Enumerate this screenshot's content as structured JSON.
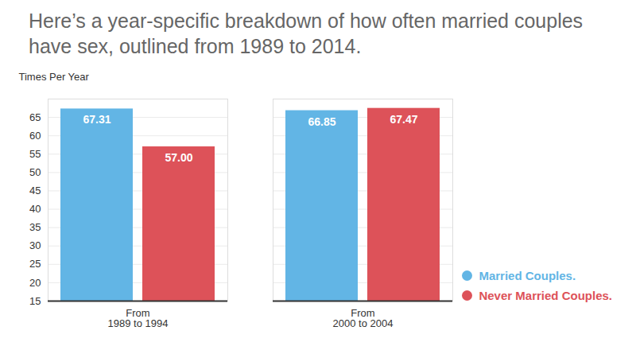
{
  "chart_data": {
    "type": "bar",
    "title": "Here’s a year-specific breakdown of how often married couples have sex, outlined from 1989 to 2014.",
    "y_label": "Times Per Year",
    "categories": [
      "From 1989 to 1994",
      "From 2000 to 2004"
    ],
    "series": [
      {
        "name": "Married Couples.",
        "color": "#62b5e5",
        "values": [
          67.31,
          66.85
        ],
        "value_labels": [
          "67.31",
          "66.85"
        ]
      },
      {
        "name": "Never Married Couples.",
        "color": "#dd5259",
        "values": [
          57.0,
          67.47
        ],
        "value_labels": [
          "57.00",
          "67.47"
        ]
      }
    ],
    "ylim": [
      15,
      70
    ],
    "yticks": [
      15,
      20,
      25,
      30,
      35,
      40,
      45,
      50,
      55,
      60,
      65
    ],
    "grid": true,
    "data_labels": true,
    "legend": "right"
  }
}
